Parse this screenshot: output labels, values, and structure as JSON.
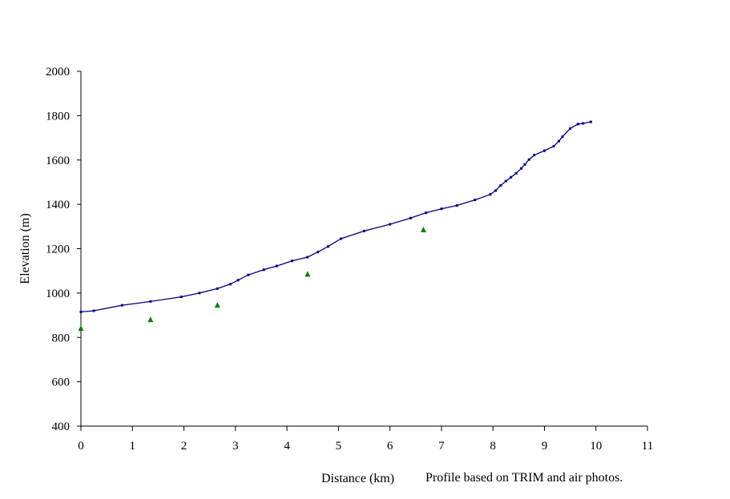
{
  "chart_data": {
    "type": "line",
    "xlabel": "Distance (km)",
    "ylabel": "Elevation (m)",
    "note": "Profile based on TRIM and air photos.",
    "xlim": [
      0,
      11
    ],
    "ylim": [
      400,
      2000
    ],
    "x_ticks": [
      0,
      1,
      2,
      3,
      4,
      5,
      6,
      7,
      8,
      9,
      10,
      11
    ],
    "y_ticks": [
      400,
      600,
      800,
      1000,
      1200,
      1400,
      1600,
      1800,
      2000
    ],
    "grid": false,
    "legend": "none",
    "series": [
      {
        "type": "line",
        "color": "#000080",
        "marker": "dot",
        "x": [
          0,
          0.25,
          0.8,
          1.35,
          1.95,
          2.3,
          2.65,
          2.9,
          3.05,
          3.25,
          3.55,
          3.8,
          4.1,
          4.4,
          4.6,
          4.8,
          5.05,
          5.5,
          6.0,
          6.4,
          6.7,
          7.0,
          7.3,
          7.65,
          7.95,
          8.05,
          8.15,
          8.25,
          8.35,
          8.45,
          8.55,
          8.62,
          8.7,
          8.8,
          9.0,
          9.18,
          9.28,
          9.35,
          9.5,
          9.65,
          9.75,
          9.9
        ],
        "y": [
          915,
          920,
          945,
          962,
          983,
          1000,
          1020,
          1040,
          1058,
          1082,
          1105,
          1122,
          1145,
          1162,
          1185,
          1210,
          1245,
          1280,
          1310,
          1338,
          1362,
          1380,
          1395,
          1420,
          1445,
          1462,
          1485,
          1505,
          1522,
          1540,
          1562,
          1580,
          1602,
          1622,
          1642,
          1662,
          1685,
          1705,
          1742,
          1762,
          1765,
          1772
        ]
      },
      {
        "type": "scatter",
        "color": "#008000",
        "marker": "triangle",
        "x": [
          0,
          1.35,
          2.65,
          4.4,
          6.65
        ],
        "y": [
          840,
          880,
          945,
          1085,
          1285
        ]
      }
    ]
  }
}
